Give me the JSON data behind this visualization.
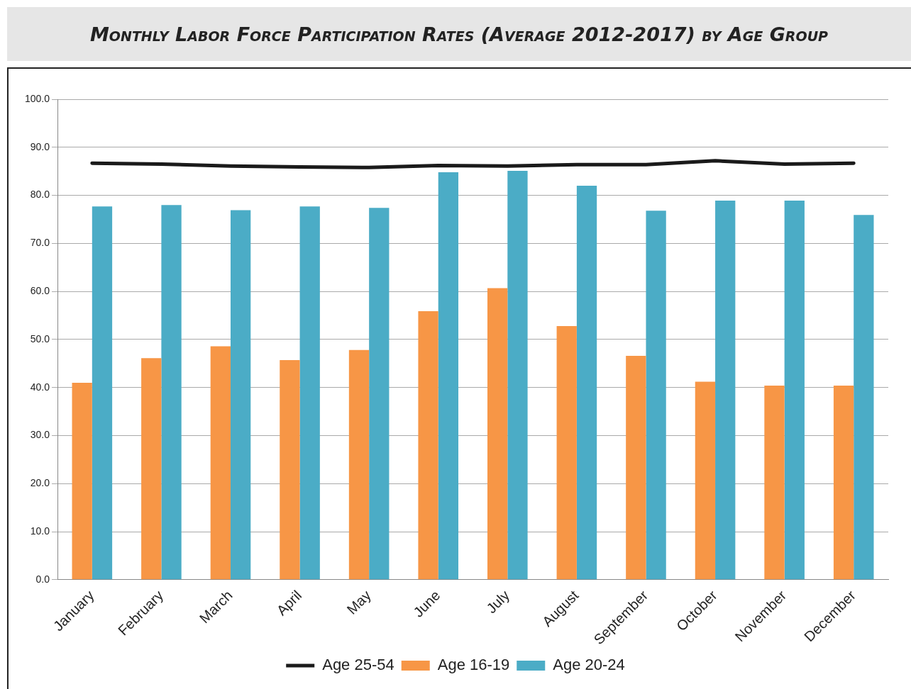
{
  "chart_data": {
    "type": "bar",
    "title": "Monthly Labor Force Participation Rates (Average 2012-2017) by Age Group",
    "categories": [
      "January",
      "February",
      "March",
      "April",
      "May",
      "June",
      "July",
      "August",
      "September",
      "October",
      "November",
      "December"
    ],
    "series": [
      {
        "name": "Age 16-19",
        "color": "#f79646",
        "values": [
          41.0,
          46.1,
          48.6,
          45.7,
          47.8,
          55.9,
          60.7,
          52.8,
          46.6,
          41.2,
          40.4,
          40.4
        ]
      },
      {
        "name": "Age 20-24",
        "color": "#4bacc6",
        "values": [
          77.7,
          78.0,
          76.9,
          77.7,
          77.4,
          84.8,
          85.1,
          82.0,
          76.8,
          78.9,
          78.9,
          75.9
        ]
      },
      {
        "name": "Age 25-54",
        "color": "#1a1a1a",
        "type": "line",
        "values": [
          86.7,
          86.5,
          86.1,
          85.9,
          85.8,
          86.2,
          86.1,
          86.4,
          86.4,
          87.2,
          86.5,
          86.7
        ]
      }
    ],
    "ylim": [
      0,
      100
    ],
    "yticks": [
      {
        "value": 0,
        "label": "0.0"
      },
      {
        "value": 10,
        "label": "10.0"
      },
      {
        "value": 20,
        "label": "20.0"
      },
      {
        "value": 30,
        "label": "30.0"
      },
      {
        "value": 40,
        "label": "40.0"
      },
      {
        "value": 50,
        "label": "50.0"
      },
      {
        "value": 60,
        "label": "60.0"
      },
      {
        "value": 70,
        "label": "70.0"
      },
      {
        "value": 80,
        "label": "80.0"
      },
      {
        "value": 90,
        "label": "90.0"
      },
      {
        "value": 100,
        "label": "100.0"
      }
    ],
    "grid": "y",
    "legend": "bottom",
    "marker": "none",
    "line_style": "solid"
  }
}
